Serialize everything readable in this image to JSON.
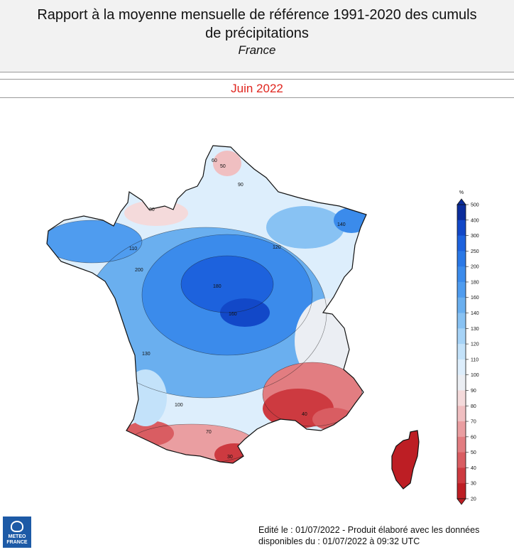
{
  "header": {
    "title_line1": "Rapport à la moyenne mensuelle de référence 1991-2020 des cumuls",
    "title_line2": "de précipitations",
    "subtitle": "France"
  },
  "period": "Juin 2022",
  "legend": {
    "unit": "%",
    "ticks": [
      "500",
      "400",
      "300",
      "250",
      "200",
      "180",
      "160",
      "140",
      "130",
      "120",
      "110",
      "100",
      "90",
      "80",
      "70",
      "60",
      "50",
      "40",
      "30",
      "20"
    ],
    "colors": [
      "#0b2d9c",
      "#1248c8",
      "#1d62dd",
      "#2a78e6",
      "#3b8beb",
      "#4f9cef",
      "#6aafef",
      "#88c2f3",
      "#a6d3f7",
      "#c3e2fa",
      "#ddeefc",
      "#ebeef3",
      "#f4dadb",
      "#f0bfc1",
      "#ea9ea1",
      "#e27d81",
      "#d95d62",
      "#cd3a40",
      "#bd1e24"
    ]
  },
  "map": {
    "contour_labels": [
      "60",
      "50",
      "90",
      "140",
      "110",
      "200",
      "160",
      "180",
      "80",
      "70",
      "100",
      "130",
      "120",
      "40",
      "30"
    ],
    "icons": [
      "france-map",
      "corsica-map"
    ]
  },
  "footer": {
    "line1": "Edité le : 01/07/2022 - Produit élaboré avec les données",
    "line2": "disponibles du : 01/07/2022 à 09:32 UTC"
  },
  "logo": {
    "line1": "METEO",
    "line2": "FRANCE",
    "icon": "meteo-france-logo"
  }
}
